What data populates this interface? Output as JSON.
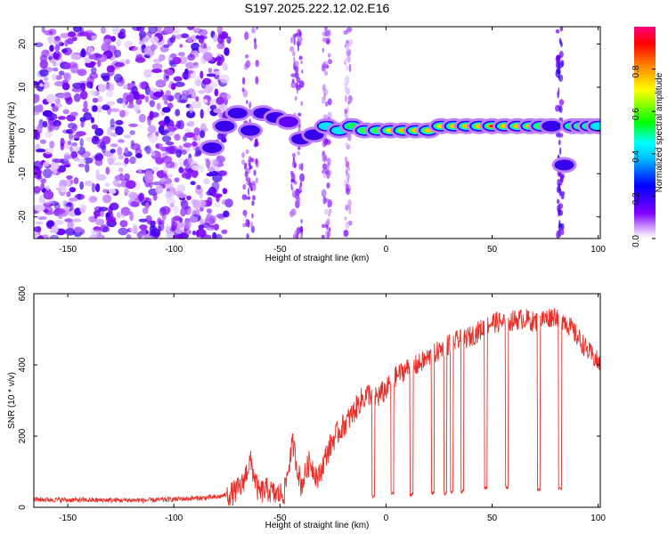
{
  "title": "S197.2025.222.12.02.E16",
  "colors": {
    "axis": "#000000",
    "snr_line": "#e8302a",
    "background": "#ffffff"
  },
  "chart_data": [
    {
      "type": "heatmap",
      "name": "spectrogram",
      "xlabel": "Height of straight line (km)",
      "ylabel": "Frequency (Hz)",
      "xlim": [
        -166,
        101
      ],
      "ylim": [
        -25,
        24
      ],
      "xticks": [
        -150,
        -100,
        -50,
        0,
        50,
        100
      ],
      "xtick_labels": [
        "-150",
        "-100",
        "-50",
        "0",
        "50",
        "100"
      ],
      "yticks": [
        -20,
        -10,
        0,
        10,
        20
      ],
      "ytick_labels": [
        "-20",
        "-10",
        "0",
        "10",
        "20"
      ],
      "signal_track": {
        "x": [
          -82,
          -76,
          -70,
          -64,
          -58,
          -52,
          -46,
          -40,
          -34,
          -28,
          -22,
          -16,
          -10,
          -4,
          2,
          8,
          14,
          20,
          26,
          32,
          38,
          44,
          50,
          56,
          62,
          68,
          73,
          78,
          84,
          88,
          92,
          96,
          100
        ],
        "freq": [
          -4,
          1,
          4,
          0,
          4,
          3,
          2,
          -2,
          -1,
          1,
          0,
          1,
          0,
          0,
          0,
          0,
          0,
          0,
          1,
          1,
          1,
          1,
          1,
          1,
          1,
          1,
          1,
          1,
          -8,
          1,
          1,
          1,
          1
        ],
        "amplitude": [
          0.3,
          0.4,
          0.45,
          0.35,
          0.3,
          0.3,
          0.25,
          0.3,
          0.4,
          0.5,
          0.55,
          0.6,
          0.65,
          0.7,
          0.75,
          0.8,
          0.85,
          0.8,
          0.75,
          0.8,
          0.85,
          0.9,
          0.95,
          0.9,
          0.9,
          0.85,
          0.7,
          0.3,
          0.4,
          0.6,
          0.7,
          0.6,
          0.5
        ]
      },
      "noise_region": [
        -166,
        -80
      ]
    },
    {
      "type": "colorbar",
      "label": "Normalized spectral amplitude",
      "range": [
        0,
        1
      ],
      "ticks": [
        0,
        0.2,
        0.4,
        0.6,
        0.8
      ],
      "tick_labels": [
        "0.0",
        "0.2",
        "0.4",
        "0.6",
        "0.8"
      ],
      "stops": [
        "#ffffff",
        "#ff00ff",
        "#8000ff",
        "#0000ff",
        "#00ffff",
        "#00ff00",
        "#ffff00",
        "#ff8000",
        "#ff0000",
        "#ff0080"
      ]
    },
    {
      "type": "line",
      "name": "snr",
      "xlabel": "Height of straight line (km)",
      "ylabel": "SNR (10 * v/v)",
      "xlim": [
        -166,
        101
      ],
      "ylim": [
        0,
        600
      ],
      "xticks": [
        -150,
        -100,
        -50,
        0,
        50,
        100
      ],
      "xtick_labels": [
        "-150",
        "-100",
        "-50",
        "0",
        "50",
        "100"
      ],
      "yticks": [
        0,
        200,
        400,
        600
      ],
      "ytick_labels": [
        "0",
        "200",
        "400",
        "600"
      ],
      "envelope": {
        "x": [
          -166,
          -140,
          -110,
          -80,
          -72,
          -68,
          -64,
          -60,
          -56,
          -52,
          -48,
          -44,
          -40,
          -36,
          -32,
          -28,
          -24,
          -20,
          -16,
          -12,
          -8,
          -4,
          0,
          5,
          10,
          15,
          20,
          25,
          30,
          35,
          40,
          45,
          50,
          55,
          60,
          65,
          70,
          75,
          80,
          85,
          90,
          95,
          101
        ],
        "y": [
          22,
          20,
          20,
          28,
          40,
          60,
          130,
          40,
          50,
          35,
          40,
          180,
          60,
          130,
          80,
          150,
          200,
          230,
          260,
          300,
          320,
          310,
          330,
          370,
          390,
          400,
          420,
          440,
          460,
          470,
          480,
          500,
          520,
          520,
          525,
          530,
          520,
          530,
          540,
          520,
          480,
          440,
          400
        ]
      },
      "dropouts": [
        {
          "x": -6,
          "y": 28
        },
        {
          "x": 3,
          "y": 38
        },
        {
          "x": 12,
          "y": 35
        },
        {
          "x": 22,
          "y": 40
        },
        {
          "x": 28,
          "y": 40
        },
        {
          "x": 31,
          "y": 42
        },
        {
          "x": 36,
          "y": 45
        },
        {
          "x": 47,
          "y": 55
        },
        {
          "x": 57,
          "y": 55
        },
        {
          "x": 72,
          "y": 50
        },
        {
          "x": 82,
          "y": 52
        }
      ]
    }
  ]
}
